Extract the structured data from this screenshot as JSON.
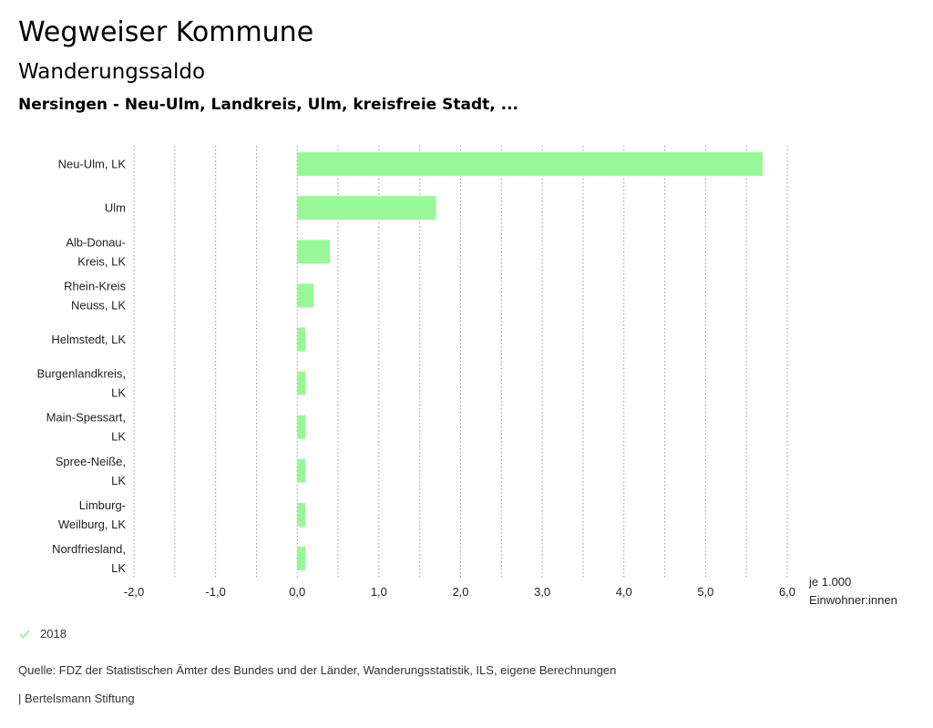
{
  "header": {
    "title": "Wegweiser Kommune",
    "subtitle": "Wanderungssaldo",
    "selection": "Nersingen - Neu-Ulm, Landkreis, Ulm, kreisfreie Stadt, ..."
  },
  "colors": {
    "bar": "#98f898",
    "grid": "#9a9a9a"
  },
  "chart_data": {
    "type": "bar",
    "orientation": "horizontal",
    "categories": [
      [
        "Neu-Ulm, LK"
      ],
      [
        "Ulm"
      ],
      [
        "Alb-Donau-",
        "Kreis, LK"
      ],
      [
        "Rhein-Kreis",
        "Neuss, LK"
      ],
      [
        "Helmstedt, LK"
      ],
      [
        "Burgenlandkreis,",
        "LK"
      ],
      [
        "Main-Spessart,",
        "LK"
      ],
      [
        "Spree-Neiße,",
        "LK"
      ],
      [
        "Limburg-",
        "Weilburg, LK"
      ],
      [
        "Nordfriesland,",
        "LK"
      ]
    ],
    "series": [
      {
        "name": "2018",
        "values": [
          5.7,
          1.7,
          0.4,
          0.2,
          0.1,
          0.1,
          0.1,
          0.1,
          0.1,
          0.1
        ]
      }
    ],
    "xlim": [
      -2.0,
      6.0
    ],
    "ticks": [
      {
        "value": -2.0,
        "label": "-2,0"
      },
      {
        "value": -1.0,
        "label": "-1,0"
      },
      {
        "value": 0.0,
        "label": "0,0"
      },
      {
        "value": 1.0,
        "label": "1,0"
      },
      {
        "value": 2.0,
        "label": "2,0"
      },
      {
        "value": 3.0,
        "label": "3,0"
      },
      {
        "value": 4.0,
        "label": "4,0"
      },
      {
        "value": 5.0,
        "label": "5,0"
      },
      {
        "value": 6.0,
        "label": "6,0"
      }
    ],
    "minor_gridlines": [
      -1.5,
      -0.5,
      0.5,
      1.5,
      2.5,
      3.5,
      4.5,
      5.5
    ],
    "unit_label": [
      "je 1.000",
      "Einwohner:innen"
    ],
    "grid": true,
    "legend": {
      "position": "bottom-left",
      "entries": [
        "2018"
      ]
    }
  },
  "legend": {
    "label": "2018"
  },
  "footer": {
    "source": "Quelle: FDZ der Statistischen Ämter des Bundes und der Länder, Wanderungsstatistik, ILS, eigene Berechnungen",
    "brand": "| Bertelsmann Stiftung"
  }
}
